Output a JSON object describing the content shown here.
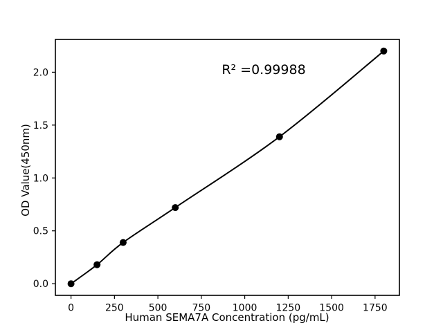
{
  "chart_data": {
    "type": "scatter",
    "x": [
      0,
      150,
      300,
      600,
      1200,
      1800
    ],
    "y": [
      0.0,
      0.18,
      0.39,
      0.72,
      1.39,
      2.2
    ],
    "fit_line": true,
    "annotation": "R² =0.99988",
    "xlabel": "Human SEMA7A Concentration (pg/mL)",
    "ylabel": "OD Value(450nm)",
    "x_ticks": [
      0,
      250,
      500,
      750,
      1000,
      1250,
      1500,
      1750
    ],
    "y_ticks": [
      0,
      0.5,
      1,
      1.5,
      2
    ],
    "xlim": [
      -90,
      1890
    ],
    "ylim": [
      -0.11,
      2.31
    ],
    "grid": false,
    "legend_position": "none",
    "marker_color": "#000000",
    "line_color": "#000000",
    "background_color": "#ffffff"
  }
}
